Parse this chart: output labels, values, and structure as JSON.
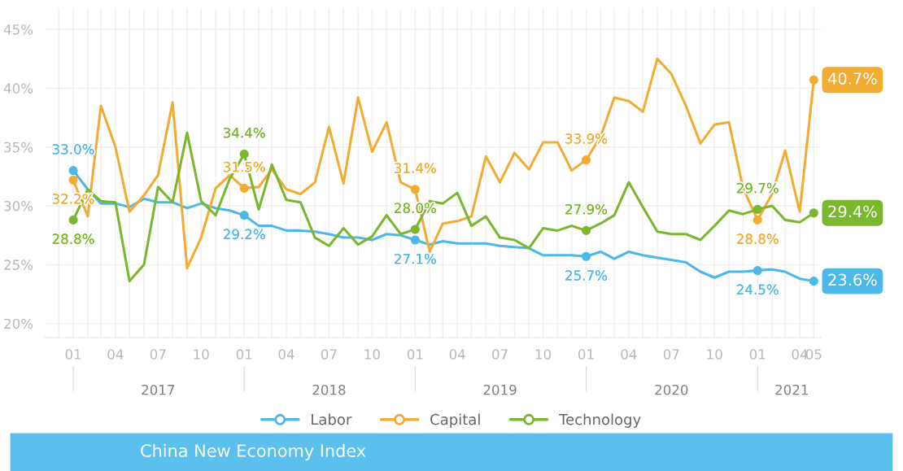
{
  "chart_data": {
    "type": "line",
    "title": "China New Economy Index",
    "x": [
      "2017-01",
      "2017-02",
      "2017-03",
      "2017-04",
      "2017-05",
      "2017-06",
      "2017-07",
      "2017-08",
      "2017-09",
      "2017-10",
      "2017-11",
      "2017-12",
      "2018-01",
      "2018-02",
      "2018-03",
      "2018-04",
      "2018-05",
      "2018-06",
      "2018-07",
      "2018-08",
      "2018-09",
      "2018-10",
      "2018-11",
      "2018-12",
      "2019-01",
      "2019-02",
      "2019-03",
      "2019-04",
      "2019-05",
      "2019-06",
      "2019-07",
      "2019-08",
      "2019-09",
      "2019-10",
      "2019-11",
      "2019-12",
      "2020-01",
      "2020-02",
      "2020-03",
      "2020-04",
      "2020-05",
      "2020-06",
      "2020-07",
      "2020-08",
      "2020-09",
      "2020-10",
      "2020-11",
      "2020-12",
      "2021-01",
      "2021-02",
      "2021-03",
      "2021-04",
      "2021-05"
    ],
    "series": [
      {
        "name": "Labor",
        "color": "#4db8e8",
        "values": [
          33.0,
          31.4,
          30.2,
          30.2,
          29.9,
          30.6,
          30.3,
          30.3,
          29.8,
          30.2,
          29.8,
          29.6,
          29.2,
          28.3,
          28.3,
          27.9,
          27.9,
          27.8,
          27.6,
          27.3,
          27.3,
          27.1,
          27.6,
          27.5,
          27.1,
          26.7,
          27.0,
          26.8,
          26.8,
          26.8,
          26.6,
          26.5,
          26.4,
          25.8,
          25.8,
          25.8,
          25.7,
          26.1,
          25.5,
          26.1,
          25.8,
          25.6,
          25.4,
          25.2,
          24.4,
          23.9,
          24.4,
          24.4,
          24.5,
          24.6,
          24.4,
          23.8,
          23.6
        ],
        "value_labels": [
          "33.0%",
          null,
          null,
          null,
          null,
          null,
          null,
          null,
          null,
          null,
          null,
          null,
          "29.2%",
          null,
          null,
          null,
          null,
          null,
          null,
          null,
          null,
          null,
          null,
          null,
          "27.1%",
          null,
          null,
          null,
          null,
          null,
          null,
          null,
          null,
          null,
          null,
          null,
          "25.7%",
          null,
          null,
          null,
          null,
          null,
          null,
          null,
          null,
          null,
          null,
          null,
          "24.5%",
          null,
          null,
          null,
          "23.6%"
        ]
      },
      {
        "name": "Capital",
        "color": "#f2ac33",
        "values": [
          32.2,
          29.1,
          38.5,
          35.0,
          29.5,
          30.9,
          32.6,
          38.8,
          24.7,
          27.3,
          31.5,
          32.6,
          31.5,
          31.6,
          33.1,
          31.4,
          31.0,
          32.0,
          36.7,
          31.9,
          39.2,
          34.6,
          37.1,
          32.0,
          31.4,
          26.1,
          28.5,
          28.7,
          29.1,
          34.2,
          32.0,
          34.5,
          33.1,
          35.4,
          35.4,
          33.0,
          33.9,
          35.9,
          39.2,
          38.9,
          38.0,
          42.5,
          41.2,
          38.5,
          35.3,
          36.9,
          37.1,
          31.5,
          28.8,
          31.0,
          34.7,
          29.5,
          40.7
        ],
        "value_labels": [
          "32.2%",
          null,
          null,
          null,
          null,
          null,
          null,
          null,
          null,
          null,
          null,
          null,
          "31.5%",
          null,
          null,
          null,
          null,
          null,
          null,
          null,
          null,
          null,
          null,
          null,
          "31.4%",
          null,
          null,
          null,
          null,
          null,
          null,
          null,
          null,
          null,
          null,
          null,
          "33.9%",
          null,
          null,
          null,
          null,
          null,
          null,
          null,
          null,
          null,
          null,
          null,
          "28.8%",
          null,
          null,
          null,
          "40.7%"
        ]
      },
      {
        "name": "Technology",
        "color": "#7ab72f",
        "values": [
          28.8,
          31.4,
          30.4,
          30.3,
          23.6,
          25.0,
          31.6,
          30.3,
          36.2,
          30.4,
          29.2,
          32.3,
          34.4,
          29.7,
          33.5,
          30.5,
          30.3,
          27.3,
          26.6,
          28.1,
          26.7,
          27.4,
          29.2,
          27.6,
          28.0,
          30.4,
          30.2,
          31.1,
          28.3,
          29.1,
          27.3,
          27.1,
          26.4,
          28.1,
          27.9,
          28.3,
          27.9,
          28.5,
          29.2,
          32.0,
          29.9,
          27.8,
          27.6,
          27.6,
          27.1,
          28.3,
          29.6,
          29.3,
          29.7,
          30.0,
          28.8,
          28.6,
          29.4
        ],
        "value_labels": [
          "28.8%",
          null,
          null,
          null,
          null,
          null,
          null,
          null,
          null,
          null,
          null,
          null,
          "34.4%",
          null,
          null,
          null,
          null,
          null,
          null,
          null,
          null,
          null,
          null,
          null,
          "28.0%",
          null,
          null,
          null,
          null,
          null,
          null,
          null,
          null,
          null,
          null,
          null,
          "27.9%",
          null,
          null,
          null,
          null,
          null,
          null,
          null,
          null,
          null,
          null,
          null,
          "29.7%",
          null,
          null,
          null,
          "29.4%"
        ]
      }
    ],
    "ylim": [
      18.8,
      46.8
    ],
    "yticks": [
      {
        "value": 20,
        "label": "20%"
      },
      {
        "value": 25,
        "label": "25%"
      },
      {
        "value": 30,
        "label": "30%"
      },
      {
        "value": 35,
        "label": "35%"
      },
      {
        "value": 40,
        "label": "40%"
      },
      {
        "value": 45,
        "label": "45%"
      }
    ],
    "xlim": [
      "2016-11-01",
      "2021-05-17"
    ],
    "xticks": [
      {
        "value": "2016-12",
        "label": null
      },
      {
        "value": "2017-01",
        "label": "01"
      },
      {
        "value": "2017-02",
        "label": null
      },
      {
        "value": "2017-03",
        "label": null
      },
      {
        "value": "2017-04",
        "label": "04"
      },
      {
        "value": "2017-05",
        "label": null
      },
      {
        "value": "2017-06",
        "label": null
      },
      {
        "value": "2017-07",
        "label": "07"
      },
      {
        "value": "2017-08",
        "label": null
      },
      {
        "value": "2017-09",
        "label": null
      },
      {
        "value": "2017-10",
        "label": "10"
      },
      {
        "value": "2017-11",
        "label": null
      },
      {
        "value": "2017-12",
        "label": null
      },
      {
        "value": "2018-01",
        "label": "01"
      },
      {
        "value": "2018-02",
        "label": null
      },
      {
        "value": "2018-03",
        "label": null
      },
      {
        "value": "2018-04",
        "label": "04"
      },
      {
        "value": "2018-05",
        "label": null
      },
      {
        "value": "2018-06",
        "label": null
      },
      {
        "value": "2018-07",
        "label": "07"
      },
      {
        "value": "2018-08",
        "label": null
      },
      {
        "value": "2018-09",
        "label": null
      },
      {
        "value": "2018-10",
        "label": "10"
      },
      {
        "value": "2018-11",
        "label": null
      },
      {
        "value": "2018-12",
        "label": null
      },
      {
        "value": "2019-01",
        "label": "01"
      },
      {
        "value": "2019-02",
        "label": null
      },
      {
        "value": "2019-03",
        "label": null
      },
      {
        "value": "2019-04",
        "label": "04"
      },
      {
        "value": "2019-05",
        "label": null
      },
      {
        "value": "2019-06",
        "label": null
      },
      {
        "value": "2019-07",
        "label": "07"
      },
      {
        "value": "2019-08",
        "label": null
      },
      {
        "value": "2019-09",
        "label": null
      },
      {
        "value": "2019-10",
        "label": "10"
      },
      {
        "value": "2019-11",
        "label": null
      },
      {
        "value": "2019-12",
        "label": null
      },
      {
        "value": "2020-01",
        "label": "01"
      },
      {
        "value": "2020-02",
        "label": null
      },
      {
        "value": "2020-03",
        "label": null
      },
      {
        "value": "2020-04",
        "label": "04"
      },
      {
        "value": "2020-05",
        "label": null
      },
      {
        "value": "2020-06",
        "label": null
      },
      {
        "value": "2020-07",
        "label": "07"
      },
      {
        "value": "2020-08",
        "label": null
      },
      {
        "value": "2020-09",
        "label": null
      },
      {
        "value": "2020-10",
        "label": "10"
      },
      {
        "value": "2020-11",
        "label": null
      },
      {
        "value": "2020-12",
        "label": null
      },
      {
        "value": "2021-01",
        "label": "01"
      },
      {
        "value": "2021-02",
        "label": null
      },
      {
        "value": "2021-03",
        "label": null
      },
      {
        "value": "2021-04",
        "label": "04"
      },
      {
        "value": "2021-05",
        "label": "05"
      }
    ],
    "x2lim": [
      "2016-11-01",
      "2021-05-17"
    ],
    "x2ticks": [
      {
        "value": "2017-01",
        "label": null
      },
      {
        "value": "2017-07",
        "label": "2017"
      },
      {
        "value": "2018-01",
        "label": null
      },
      {
        "value": "2018-07",
        "label": "2018"
      },
      {
        "value": "2019-01",
        "label": null
      },
      {
        "value": "2019-07",
        "label": "2019"
      },
      {
        "value": "2020-01",
        "label": null
      },
      {
        "value": "2020-07",
        "label": "2020"
      },
      {
        "value": "2021-01",
        "label": null
      },
      {
        "value": "2021-03-15",
        "label": "2021"
      }
    ],
    "grid": true,
    "legend": "bottom",
    "line_style": "solid"
  }
}
